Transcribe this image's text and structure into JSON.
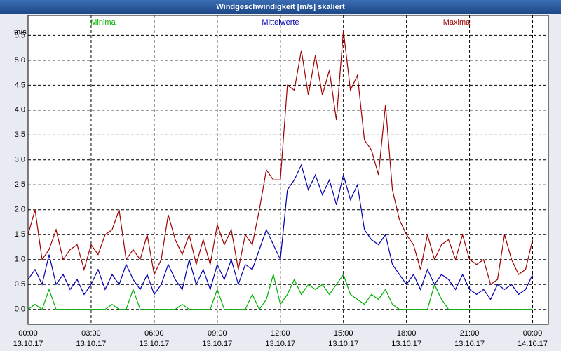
{
  "chart_data": {
    "type": "line",
    "title": "Windgeschwindigkeit [m/s] skaliert",
    "y_label": "m/s",
    "x": [
      0,
      20,
      40,
      60,
      80,
      100,
      120,
      140,
      160,
      180,
      200,
      220,
      240,
      260,
      280,
      300,
      320,
      340,
      360,
      380,
      400,
      420,
      440,
      460,
      480,
      500,
      520,
      540,
      560,
      580,
      600,
      620,
      640,
      660,
      680,
      700,
      720,
      740,
      760,
      780,
      800,
      820,
      840,
      860,
      880,
      900,
      920,
      940,
      960,
      980,
      1000,
      1020,
      1040,
      1060,
      1080,
      1100,
      1120,
      1140,
      1160,
      1180,
      1200,
      1220,
      1240,
      1260,
      1280,
      1300,
      1320,
      1340,
      1360,
      1380,
      1400,
      1420,
      1440
    ],
    "series": [
      {
        "name": "Minima",
        "color": "#00b000",
        "values": [
          0.0,
          0.1,
          0.0,
          0.4,
          0.0,
          0.0,
          0.0,
          0.0,
          0.0,
          0.0,
          0.0,
          0.0,
          0.1,
          0.0,
          0.0,
          0.4,
          0.0,
          0.0,
          0.0,
          0.0,
          0.0,
          0.0,
          0.1,
          0.0,
          0.0,
          0.0,
          0.0,
          0.4,
          0.0,
          0.0,
          0.0,
          0.0,
          0.3,
          0.0,
          0.2,
          0.7,
          0.1,
          0.3,
          0.6,
          0.3,
          0.5,
          0.4,
          0.5,
          0.3,
          0.5,
          0.7,
          0.3,
          0.2,
          0.1,
          0.3,
          0.2,
          0.4,
          0.1,
          0.0,
          0.0,
          0.0,
          0.0,
          0.0,
          0.5,
          0.2,
          0.0,
          0.0,
          0.0,
          0.0,
          0.0,
          0.0,
          0.0,
          0.0,
          0.0,
          0.0,
          0.0,
          0.0,
          0.0
        ]
      },
      {
        "name": "Mittelwerte",
        "color": "#0000b0",
        "values": [
          0.6,
          0.8,
          0.5,
          1.1,
          0.5,
          0.7,
          0.4,
          0.6,
          0.3,
          0.5,
          0.8,
          0.4,
          0.7,
          0.5,
          0.9,
          0.6,
          0.4,
          0.7,
          0.3,
          0.5,
          0.9,
          0.6,
          0.4,
          1.0,
          0.5,
          0.8,
          0.4,
          0.9,
          0.6,
          1.0,
          0.5,
          0.9,
          0.8,
          1.2,
          1.6,
          1.3,
          1.0,
          2.4,
          2.6,
          2.9,
          2.4,
          2.7,
          2.3,
          2.6,
          2.1,
          2.7,
          2.2,
          2.5,
          1.6,
          1.4,
          1.3,
          1.5,
          0.9,
          0.7,
          0.5,
          0.7,
          0.4,
          0.8,
          0.5,
          0.7,
          0.6,
          0.4,
          0.7,
          0.4,
          0.3,
          0.4,
          0.2,
          0.5,
          0.4,
          0.5,
          0.3,
          0.4,
          0.7
        ]
      },
      {
        "name": "Maxima",
        "color": "#a00000",
        "values": [
          1.5,
          2.0,
          1.0,
          1.2,
          1.6,
          1.0,
          1.2,
          1.3,
          0.8,
          1.3,
          1.1,
          1.5,
          1.6,
          2.0,
          1.0,
          1.2,
          1.0,
          1.5,
          0.7,
          1.0,
          1.9,
          1.4,
          1.1,
          1.5,
          0.9,
          1.4,
          0.9,
          1.7,
          1.3,
          1.6,
          0.8,
          1.5,
          1.3,
          2.0,
          2.8,
          2.6,
          2.6,
          4.5,
          4.4,
          5.2,
          4.3,
          5.1,
          4.3,
          4.8,
          3.8,
          5.6,
          4.4,
          4.7,
          3.4,
          3.2,
          2.7,
          4.1,
          2.4,
          1.8,
          1.5,
          1.3,
          0.8,
          1.5,
          1.0,
          1.3,
          1.4,
          1.0,
          1.5,
          1.0,
          0.9,
          1.0,
          0.5,
          0.6,
          1.5,
          1.0,
          0.7,
          0.8,
          1.4
        ]
      }
    ],
    "xlim": [
      0,
      1485
    ],
    "xticks": [
      {
        "value": 0,
        "label": "00:00"
      },
      {
        "value": 180,
        "label": "03:00"
      },
      {
        "value": 360,
        "label": "06:00"
      },
      {
        "value": 540,
        "label": "09:00"
      },
      {
        "value": 720,
        "label": "12:00"
      },
      {
        "value": 900,
        "label": "15:00"
      },
      {
        "value": 1080,
        "label": "18:00"
      },
      {
        "value": 1260,
        "label": "21:00"
      },
      {
        "value": 1440,
        "label": "00:00"
      }
    ],
    "xtick_dates": [
      "13.10.17",
      "13.10.17",
      "13.10.17",
      "13.10.17",
      "13.10.17",
      "13.10.17",
      "13.10.17",
      "13.10.17",
      "14.10.17"
    ],
    "ylim": [
      -0.3,
      5.9
    ],
    "yticks": [
      {
        "value": 0,
        "label": "0,0"
      },
      {
        "value": 0.5,
        "label": "0,5"
      },
      {
        "value": 1,
        "label": "1,0"
      },
      {
        "value": 1.5,
        "label": "1,5"
      },
      {
        "value": 2,
        "label": "2,0"
      },
      {
        "value": 2.5,
        "label": "2,5"
      },
      {
        "value": 3,
        "label": "3,0"
      },
      {
        "value": 3.5,
        "label": "3,5"
      },
      {
        "value": 4,
        "label": "4,0"
      },
      {
        "value": 4.5,
        "label": "4,5"
      },
      {
        "value": 5,
        "label": "5,0"
      },
      {
        "value": 5.5,
        "label": "5,5"
      }
    ],
    "grid": true
  }
}
